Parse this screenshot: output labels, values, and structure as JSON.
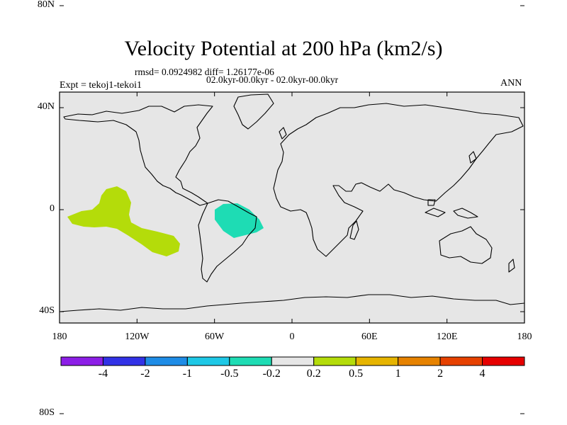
{
  "title": "Velocity Potential at 200 hPa (km2/s)",
  "stats": "rmsd= 0.0924982 diff= 1.26177e-06",
  "period": "02.0kyr-00.0kyr - 02.0kyr-00.0kyr",
  "expt": "Expt = tekoj1-tekoi1",
  "season": "ANN",
  "y_ticks": [
    {
      "label": "80N",
      "lat": 80
    },
    {
      "label": "40N",
      "lat": 40
    },
    {
      "label": "0",
      "lat": 0
    },
    {
      "label": "40S",
      "lat": -40
    },
    {
      "label": "80S",
      "lat": -80
    }
  ],
  "x_ticks": [
    {
      "label": "180",
      "lon": -180
    },
    {
      "label": "120W",
      "lon": -120
    },
    {
      "label": "60W",
      "lon": -60
    },
    {
      "label": "0",
      "lon": 0
    },
    {
      "label": "60E",
      "lon": 60
    },
    {
      "label": "120E",
      "lon": 120
    },
    {
      "label": "180",
      "lon": 180
    }
  ],
  "colorbar": {
    "colors": [
      "#8c1ee6",
      "#3232e6",
      "#1e8ce6",
      "#1ec8e6",
      "#1edcb4",
      "#e6e6e6",
      "#b4dc0a",
      "#e6b400",
      "#e68200",
      "#e64100",
      "#e60000"
    ],
    "labels": [
      "-4",
      "-2",
      "-1",
      "-0.5",
      "-0.2",
      "0.2",
      "0.5",
      "1",
      "2",
      "4"
    ]
  },
  "anomalies": [
    {
      "name": "east-pacific-positive",
      "value_range": "0.2 to 0.5",
      "color": "#b4dc0a"
    },
    {
      "name": "south-america-negative",
      "value_range": "-0.5 to -0.2",
      "color": "#1edcb4"
    }
  ],
  "background_color": "#e6e6e6"
}
